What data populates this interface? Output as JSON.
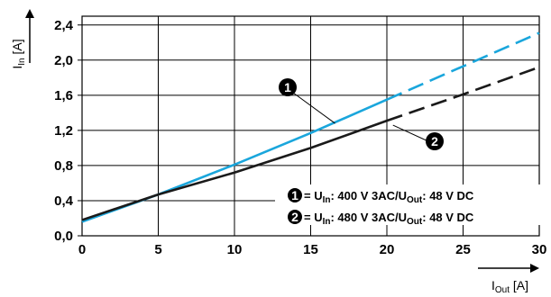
{
  "chart_data": {
    "type": "line",
    "x_ticks": [
      "0",
      "5",
      "10",
      "15",
      "20",
      "25",
      "30"
    ],
    "y_ticks": [
      "0,0",
      "0,4",
      "0,8",
      "1,2",
      "1,6",
      "2,0",
      "2,4"
    ],
    "xlim": [
      0,
      30
    ],
    "ylim": [
      0,
      2.5
    ],
    "grid": true,
    "xlabel": {
      "main": "I",
      "sub": "Out",
      "unit": " [A]"
    },
    "ylabel": {
      "main": "I",
      "sub": "In",
      "unit": " [A]"
    },
    "series": [
      {
        "marker": "1",
        "color": "#1aa6dc",
        "solid_until_x": 20,
        "points": [
          [
            0,
            0.16
          ],
          [
            5,
            0.47
          ],
          [
            10,
            0.81
          ],
          [
            15,
            1.17
          ],
          [
            20,
            1.55
          ],
          [
            25,
            1.93
          ],
          [
            30,
            2.31
          ]
        ],
        "legend": {
          "pre": " = U",
          "sub1": "In",
          "mid": ": 400 V 3AC/U",
          "sub2": "Out",
          "post": ": 48 V DC"
        }
      },
      {
        "marker": "2",
        "color": "#1a1a1a",
        "solid_until_x": 20,
        "points": [
          [
            0,
            0.18
          ],
          [
            5,
            0.47
          ],
          [
            10,
            0.72
          ],
          [
            15,
            1.0
          ],
          [
            20,
            1.31
          ],
          [
            25,
            1.61
          ],
          [
            30,
            1.92
          ]
        ],
        "legend": {
          "pre": " = U",
          "sub1": "In",
          "mid": ": 480 V 3AC/U",
          "sub2": "Out",
          "post": ": 48 V DC"
        }
      }
    ],
    "callouts": [
      {
        "marker": "1",
        "target_x": 16.6,
        "target_y": 1.28
      },
      {
        "marker": "2",
        "target_x": 20.4,
        "target_y": 1.26
      }
    ]
  }
}
